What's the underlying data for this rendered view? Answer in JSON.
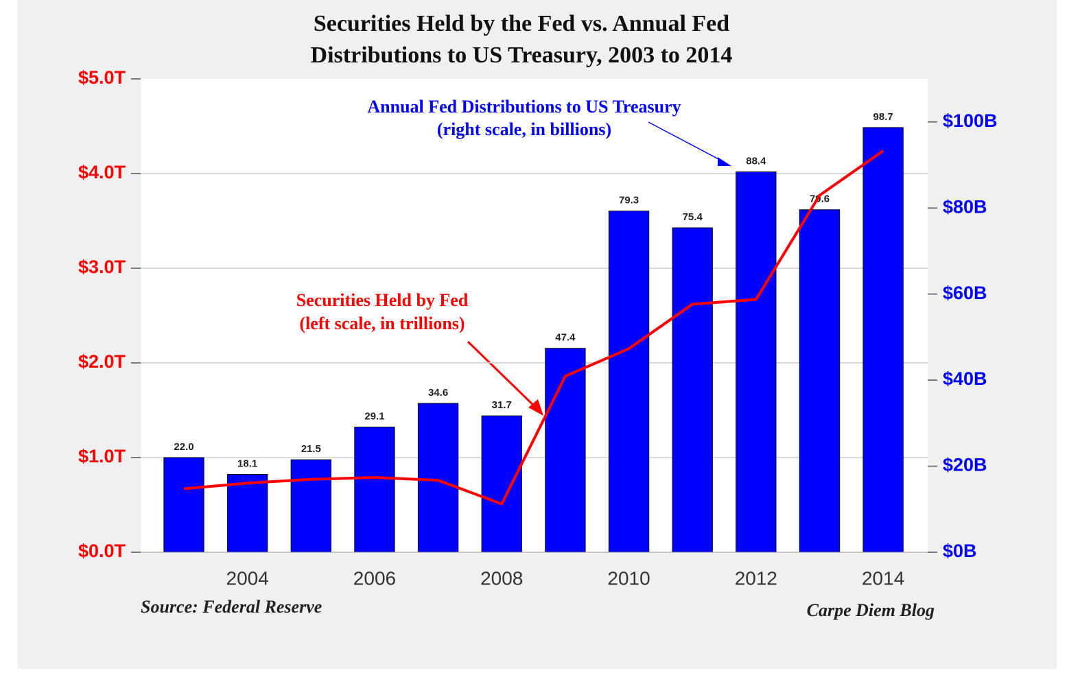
{
  "chart_data": {
    "type": "bar",
    "title": [
      "Securities Held by the Fed vs. Annual Fed",
      "Distributions to US Treasury, 2003 to 2014"
    ],
    "x": [
      2003,
      2004,
      2005,
      2006,
      2007,
      2008,
      2009,
      2010,
      2011,
      2012,
      2013,
      2014
    ],
    "xlim": [
      2002.32,
      2014.7
    ],
    "xticks": [
      2004,
      2006,
      2008,
      2010,
      2012,
      2014
    ],
    "ylim": [
      0,
      5
    ],
    "yticks": [
      {
        "value": 0,
        "label": "$0.0T"
      },
      {
        "value": 1,
        "label": "$1.0T"
      },
      {
        "value": 2,
        "label": "$2.0T"
      },
      {
        "value": 3,
        "label": "$3.0T"
      },
      {
        "value": 4,
        "label": "$4.0T"
      },
      {
        "value": 5,
        "label": "$5.0T"
      }
    ],
    "y2lim": [
      0,
      110
    ],
    "y2ticks": [
      {
        "value": 0,
        "label": "$0B"
      },
      {
        "value": 20,
        "label": "$20B"
      },
      {
        "value": 40,
        "label": "$40B"
      },
      {
        "value": 60,
        "label": "$60B"
      },
      {
        "value": 80,
        "label": "$80B"
      },
      {
        "value": 100,
        "label": "$100B"
      }
    ],
    "grid": true,
    "series": [
      {
        "type": "bar",
        "axis": "y2",
        "color": "#0000ff",
        "values": [
          22.0,
          18.1,
          21.5,
          29.1,
          34.6,
          31.7,
          47.4,
          79.3,
          75.4,
          88.4,
          79.6,
          98.7
        ],
        "value_labels": [
          "22.0",
          "18.1",
          "21.5",
          "29.1",
          "34.6",
          "31.7",
          "47.4",
          "79.3",
          "75.4",
          "88.4",
          "79.6",
          "98.7"
        ]
      },
      {
        "type": "line",
        "color": "#ff0000",
        "values": [
          0.67,
          0.73,
          0.77,
          0.79,
          0.76,
          0.51,
          1.86,
          2.15,
          2.62,
          2.67,
          3.77,
          4.24
        ]
      }
    ],
    "annotations": [
      {
        "lines": [
          "Annual Fed Distributions to US Treasury",
          "(right scale, in billions)"
        ],
        "color": "#0000ff"
      },
      {
        "lines": [
          "Securities Held by Fed",
          "(left scale, in trillions)"
        ],
        "color": "#ff0000"
      }
    ],
    "source": "Source: Federal Reserve",
    "credit": "Carpe Diem Blog"
  }
}
